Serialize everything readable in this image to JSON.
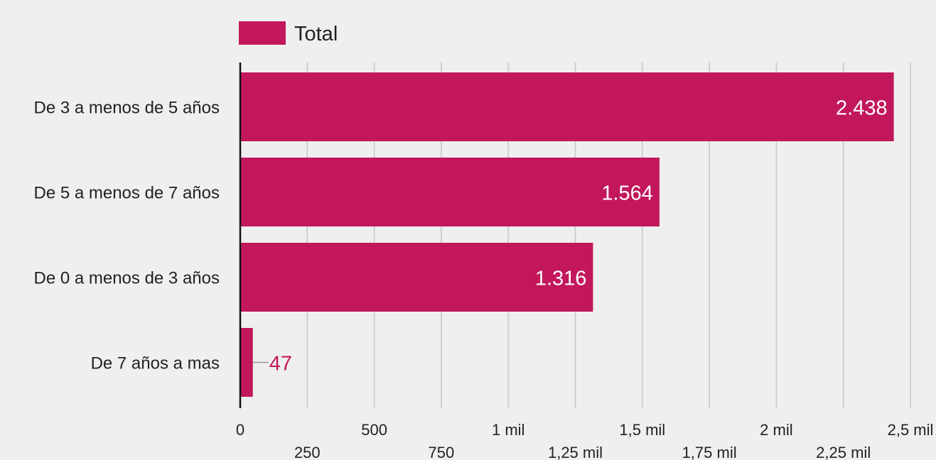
{
  "chart_data": {
    "type": "bar",
    "orientation": "horizontal",
    "categories": [
      "De 3 a menos de 5 años",
      "De 5 a menos de 7 años",
      "De 0 a menos de 3 años",
      "De 7 años a mas"
    ],
    "series": [
      {
        "name": "Total",
        "values": [
          2438,
          1564,
          1316,
          47
        ],
        "color": "#c2185b"
      }
    ],
    "value_labels": [
      "2.438",
      "1.564",
      "1.316",
      "47"
    ],
    "xlim": [
      0,
      2500
    ],
    "xticks": [
      {
        "value": 0,
        "label": "0"
      },
      {
        "value": 250,
        "label": "250"
      },
      {
        "value": 500,
        "label": "500"
      },
      {
        "value": 750,
        "label": "750"
      },
      {
        "value": 1000,
        "label": "1 mil"
      },
      {
        "value": 1250,
        "label": "1,25 mil"
      },
      {
        "value": 1500,
        "label": "1,5 mil"
      },
      {
        "value": 1750,
        "label": "1,75 mil"
      },
      {
        "value": 2000,
        "label": "2 mil"
      },
      {
        "value": 2250,
        "label": "2,25 mil"
      },
      {
        "value": 2500,
        "label": "2,5 mil"
      }
    ],
    "grid": true,
    "legend": {
      "position": "top",
      "label": "Total"
    },
    "title": "",
    "xlabel": "",
    "ylabel": ""
  }
}
